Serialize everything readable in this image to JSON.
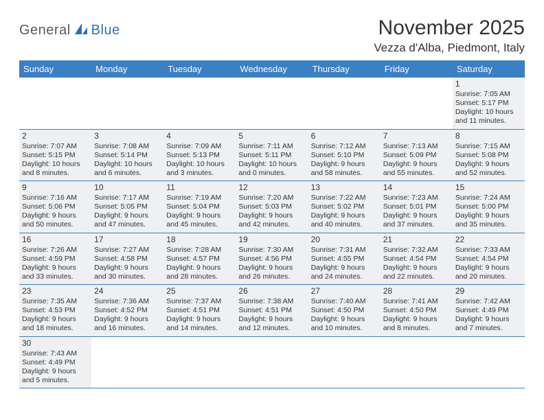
{
  "logo": {
    "part1": "General",
    "part2": "Blue"
  },
  "title": "November 2025",
  "location": "Vezza d'Alba, Piedmont, Italy",
  "colors": {
    "header_bg": "#3b7fc4",
    "header_text": "#ffffff",
    "cell_filled_bg": "#eef0f2",
    "cell_border": "#3b7fc4",
    "text": "#333333",
    "logo_gray": "#5a5a5a",
    "logo_blue": "#2f6fb0"
  },
  "day_headers": [
    "Sunday",
    "Monday",
    "Tuesday",
    "Wednesday",
    "Thursday",
    "Friday",
    "Saturday"
  ],
  "weeks": [
    [
      null,
      null,
      null,
      null,
      null,
      null,
      {
        "n": "1",
        "sr": "Sunrise: 7:05 AM",
        "ss": "Sunset: 5:17 PM",
        "d1": "Daylight: 10 hours",
        "d2": "and 11 minutes."
      }
    ],
    [
      {
        "n": "2",
        "sr": "Sunrise: 7:07 AM",
        "ss": "Sunset: 5:15 PM",
        "d1": "Daylight: 10 hours",
        "d2": "and 8 minutes."
      },
      {
        "n": "3",
        "sr": "Sunrise: 7:08 AM",
        "ss": "Sunset: 5:14 PM",
        "d1": "Daylight: 10 hours",
        "d2": "and 6 minutes."
      },
      {
        "n": "4",
        "sr": "Sunrise: 7:09 AM",
        "ss": "Sunset: 5:13 PM",
        "d1": "Daylight: 10 hours",
        "d2": "and 3 minutes."
      },
      {
        "n": "5",
        "sr": "Sunrise: 7:11 AM",
        "ss": "Sunset: 5:11 PM",
        "d1": "Daylight: 10 hours",
        "d2": "and 0 minutes."
      },
      {
        "n": "6",
        "sr": "Sunrise: 7:12 AM",
        "ss": "Sunset: 5:10 PM",
        "d1": "Daylight: 9 hours",
        "d2": "and 58 minutes."
      },
      {
        "n": "7",
        "sr": "Sunrise: 7:13 AM",
        "ss": "Sunset: 5:09 PM",
        "d1": "Daylight: 9 hours",
        "d2": "and 55 minutes."
      },
      {
        "n": "8",
        "sr": "Sunrise: 7:15 AM",
        "ss": "Sunset: 5:08 PM",
        "d1": "Daylight: 9 hours",
        "d2": "and 52 minutes."
      }
    ],
    [
      {
        "n": "9",
        "sr": "Sunrise: 7:16 AM",
        "ss": "Sunset: 5:06 PM",
        "d1": "Daylight: 9 hours",
        "d2": "and 50 minutes."
      },
      {
        "n": "10",
        "sr": "Sunrise: 7:17 AM",
        "ss": "Sunset: 5:05 PM",
        "d1": "Daylight: 9 hours",
        "d2": "and 47 minutes."
      },
      {
        "n": "11",
        "sr": "Sunrise: 7:19 AM",
        "ss": "Sunset: 5:04 PM",
        "d1": "Daylight: 9 hours",
        "d2": "and 45 minutes."
      },
      {
        "n": "12",
        "sr": "Sunrise: 7:20 AM",
        "ss": "Sunset: 5:03 PM",
        "d1": "Daylight: 9 hours",
        "d2": "and 42 minutes."
      },
      {
        "n": "13",
        "sr": "Sunrise: 7:22 AM",
        "ss": "Sunset: 5:02 PM",
        "d1": "Daylight: 9 hours",
        "d2": "and 40 minutes."
      },
      {
        "n": "14",
        "sr": "Sunrise: 7:23 AM",
        "ss": "Sunset: 5:01 PM",
        "d1": "Daylight: 9 hours",
        "d2": "and 37 minutes."
      },
      {
        "n": "15",
        "sr": "Sunrise: 7:24 AM",
        "ss": "Sunset: 5:00 PM",
        "d1": "Daylight: 9 hours",
        "d2": "and 35 minutes."
      }
    ],
    [
      {
        "n": "16",
        "sr": "Sunrise: 7:26 AM",
        "ss": "Sunset: 4:59 PM",
        "d1": "Daylight: 9 hours",
        "d2": "and 33 minutes."
      },
      {
        "n": "17",
        "sr": "Sunrise: 7:27 AM",
        "ss": "Sunset: 4:58 PM",
        "d1": "Daylight: 9 hours",
        "d2": "and 30 minutes."
      },
      {
        "n": "18",
        "sr": "Sunrise: 7:28 AM",
        "ss": "Sunset: 4:57 PM",
        "d1": "Daylight: 9 hours",
        "d2": "and 28 minutes."
      },
      {
        "n": "19",
        "sr": "Sunrise: 7:30 AM",
        "ss": "Sunset: 4:56 PM",
        "d1": "Daylight: 9 hours",
        "d2": "and 26 minutes."
      },
      {
        "n": "20",
        "sr": "Sunrise: 7:31 AM",
        "ss": "Sunset: 4:55 PM",
        "d1": "Daylight: 9 hours",
        "d2": "and 24 minutes."
      },
      {
        "n": "21",
        "sr": "Sunrise: 7:32 AM",
        "ss": "Sunset: 4:54 PM",
        "d1": "Daylight: 9 hours",
        "d2": "and 22 minutes."
      },
      {
        "n": "22",
        "sr": "Sunrise: 7:33 AM",
        "ss": "Sunset: 4:54 PM",
        "d1": "Daylight: 9 hours",
        "d2": "and 20 minutes."
      }
    ],
    [
      {
        "n": "23",
        "sr": "Sunrise: 7:35 AM",
        "ss": "Sunset: 4:53 PM",
        "d1": "Daylight: 9 hours",
        "d2": "and 18 minutes."
      },
      {
        "n": "24",
        "sr": "Sunrise: 7:36 AM",
        "ss": "Sunset: 4:52 PM",
        "d1": "Daylight: 9 hours",
        "d2": "and 16 minutes."
      },
      {
        "n": "25",
        "sr": "Sunrise: 7:37 AM",
        "ss": "Sunset: 4:51 PM",
        "d1": "Daylight: 9 hours",
        "d2": "and 14 minutes."
      },
      {
        "n": "26",
        "sr": "Sunrise: 7:38 AM",
        "ss": "Sunset: 4:51 PM",
        "d1": "Daylight: 9 hours",
        "d2": "and 12 minutes."
      },
      {
        "n": "27",
        "sr": "Sunrise: 7:40 AM",
        "ss": "Sunset: 4:50 PM",
        "d1": "Daylight: 9 hours",
        "d2": "and 10 minutes."
      },
      {
        "n": "28",
        "sr": "Sunrise: 7:41 AM",
        "ss": "Sunset: 4:50 PM",
        "d1": "Daylight: 9 hours",
        "d2": "and 8 minutes."
      },
      {
        "n": "29",
        "sr": "Sunrise: 7:42 AM",
        "ss": "Sunset: 4:49 PM",
        "d1": "Daylight: 9 hours",
        "d2": "and 7 minutes."
      }
    ],
    [
      {
        "n": "30",
        "sr": "Sunrise: 7:43 AM",
        "ss": "Sunset: 4:49 PM",
        "d1": "Daylight: 9 hours",
        "d2": "and 5 minutes."
      },
      null,
      null,
      null,
      null,
      null,
      null
    ]
  ]
}
